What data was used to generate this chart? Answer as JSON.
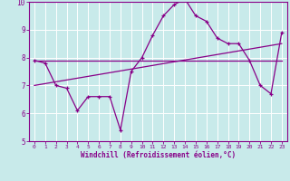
{
  "xlabel": "Windchill (Refroidissement éolien,°C)",
  "xlim": [
    -0.5,
    23.5
  ],
  "ylim": [
    5,
    10
  ],
  "xticks": [
    0,
    1,
    2,
    3,
    4,
    5,
    6,
    7,
    8,
    9,
    10,
    11,
    12,
    13,
    14,
    15,
    16,
    17,
    18,
    19,
    20,
    21,
    22,
    23
  ],
  "yticks": [
    5,
    6,
    7,
    8,
    9,
    10
  ],
  "bg_color": "#c8eaea",
  "line_color": "#880088",
  "grid_color": "#aadddd",
  "data_x": [
    0,
    1,
    2,
    3,
    4,
    5,
    6,
    7,
    8,
    9,
    10,
    11,
    12,
    13,
    14,
    15,
    16,
    17,
    18,
    19,
    20,
    21,
    22,
    23
  ],
  "data_y": [
    7.9,
    7.8,
    7.0,
    6.9,
    6.1,
    6.6,
    6.6,
    6.6,
    5.4,
    7.5,
    8.0,
    8.8,
    9.5,
    9.9,
    10.1,
    9.5,
    9.3,
    8.7,
    8.5,
    8.5,
    7.9,
    7.0,
    6.7,
    8.9
  ],
  "trend1_x": [
    0,
    23
  ],
  "trend1_y": [
    7.9,
    7.9
  ],
  "trend2_x": [
    0,
    23
  ],
  "trend2_y": [
    7.0,
    8.5
  ]
}
